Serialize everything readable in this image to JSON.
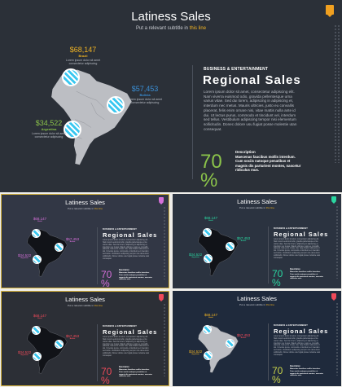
{
  "slide": {
    "title": "Latiness Sales",
    "subtitle_before": "Put a relevant subtitle in ",
    "subtitle_highlight": "this line",
    "kicker": "BUSINESS & ENTERTAINMENT",
    "heading": "Regional Sales",
    "paragraph": "Lorem ipsum dolor sit amet, consectetur adipiscing elit. Nam viverra euismod odio, gravida pellentesque urna varius vitae. Sed dui lorem, adipiscing in adipiscing et, interdum nec metus. Mauris ultricies, justo eu convallis placerat, felis enim ornare nisi, vitae mattis nulla ante id dui. Ut lectus purus, commodo et tincidunt vel, interdum sed tellus. Vestibulum adipiscing tempor nisi elementum sollicitudin. Donec dolore usu fugiat posse molestie utan consequat.",
    "percent": "70",
    "percent_sign": "%",
    "desc_title": "Description",
    "desc": "Maecenas faucibus mollis interdum. Cum sociis natoque penatibus et magnis dis parturient montes, nascetur ridiculus mus.",
    "regions": {
      "brazil": {
        "value": "$68,147",
        "name": "Brazil",
        "text": "Lorem ipsum dolor sit amet consectetur adipiscing"
      },
      "bolivia": {
        "value": "$57,453",
        "name": "Bolivia",
        "text": "Lorem ipsum dolor sit amet consectetur adipiscing"
      },
      "argentina": {
        "value": "$34,522",
        "name": "Argentina",
        "text": "Lorem ipsum dolor sit amet consectetur adipiscing"
      }
    }
  },
  "variants": [
    {
      "tag_color": "#f0a020",
      "value_colors": [
        "#f0b323",
        "#3a8fd6",
        "#8bc34a"
      ],
      "percent_color": "#8bc34a",
      "map_color": "#bcbec3"
    },
    {
      "tag_color": "#d56fd9",
      "value_colors": [
        "#d56fd9",
        "#d56fd9",
        "#d56fd9"
      ],
      "percent_color": "#d56fd9",
      "map_color": "#111318"
    },
    {
      "tag_color": "#2bd6a0",
      "value_colors": [
        "#2bd6a0",
        "#2bd6a0",
        "#2bd6a0"
      ],
      "percent_color": "#2bd6a0",
      "map_color": "#111318"
    },
    {
      "tag_color": "#f04a5a",
      "value_colors": [
        "#f04a5a",
        "#f04a5a",
        "#f04a5a"
      ],
      "percent_color": "#f04a5a",
      "map_color": "#111318"
    },
    {
      "tag_color": "#f04a5a",
      "value_colors": [
        "#f0b323",
        "#f04a5a",
        "#f0b323"
      ],
      "percent_color": "#c8d34a",
      "map_color": "#bcbec3"
    }
  ]
}
